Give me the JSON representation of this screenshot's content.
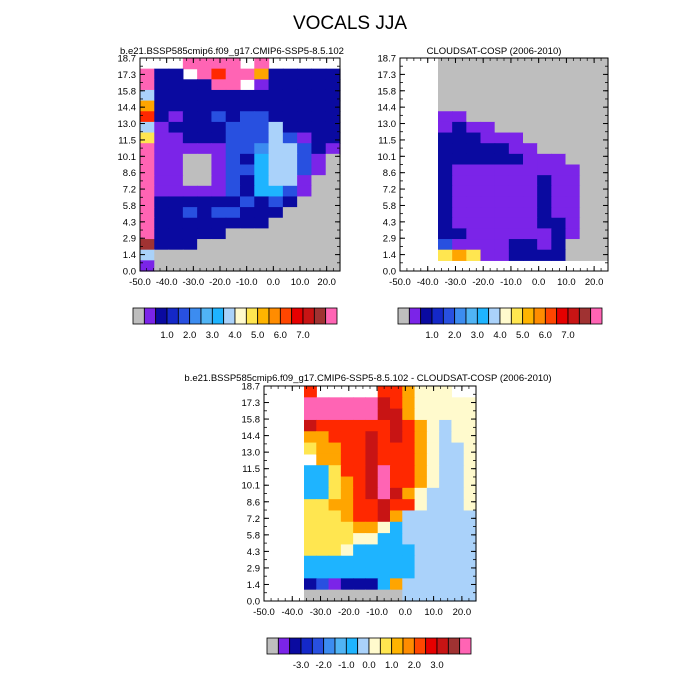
{
  "figure": {
    "title": "VOCALS JJA"
  },
  "colors": {
    "missing": "#bebebe",
    "abs": [
      "#bebebe",
      "#7b24e8",
      "#0a0aa0",
      "#1428c8",
      "#2850e0",
      "#3c8cf0",
      "#50b4f5",
      "#00c8ff",
      "#aad2fa",
      "#fffad2",
      "#ffe650",
      "#ffb400",
      "#ff8c00",
      "#ff4600",
      "#e60000",
      "#b40000",
      "#a03232",
      "#ff64b4"
    ],
    "diff": [
      "#bebebe",
      "#7b24e8",
      "#0a0aa0",
      "#1428c8",
      "#2850e0",
      "#3c8cf0",
      "#50b4f5",
      "#00c8ff",
      "#aad2fa",
      "#fffad2",
      "#ffe650",
      "#ffb400",
      "#ff8c00",
      "#ff4600",
      "#e60000",
      "#b40000",
      "#a03232",
      "#ff64b4"
    ]
  },
  "chart_data": [
    {
      "type": "heatmap",
      "title": "b.e21.BSSP585cmip6.f09_g17.CMIP6-SSP5-8.5.102",
      "x_ticks": [
        "-50.0",
        "-40.0",
        "-30.0",
        "-20.0",
        "-10.0",
        "0.0",
        "10.0",
        "20.0"
      ],
      "y_ticks": [
        "18.7",
        "17.3",
        "15.8",
        "14.4",
        "13.0",
        "11.5",
        "10.1",
        "8.6",
        "7.2",
        "5.8",
        "4.3",
        "2.9",
        "1.4",
        "0.0"
      ],
      "xlim": [
        -50,
        25
      ],
      "colorbar_labels": [
        "1.0",
        "2.0",
        "3.0",
        "4.0",
        "5.0",
        "6.0",
        "7.0"
      ],
      "cells": [
        [
          "white",
          "white",
          "white",
          "pink",
          "pink",
          "pink",
          "pink",
          "white",
          "pink",
          "white",
          "white",
          "white",
          "white",
          "white"
        ],
        [
          "pink",
          "navy",
          "navy",
          "white",
          "pink",
          "red",
          "pink",
          "pink",
          "orange",
          "navy",
          "navy",
          "navy",
          "navy",
          "navy"
        ],
        [
          "pink",
          "navy",
          "navy",
          "navy",
          "navy",
          "pink",
          "pink",
          "white",
          "purple",
          "navy",
          "navy",
          "navy",
          "navy",
          "navy"
        ],
        [
          "lightblue",
          "navy",
          "navy",
          "navy",
          "navy",
          "navy",
          "navy",
          "navy",
          "navy",
          "navy",
          "navy",
          "navy",
          "navy",
          "navy"
        ],
        [
          "orange",
          "navy",
          "navy",
          "navy",
          "navy",
          "navy",
          "navy",
          "navy",
          "navy",
          "navy",
          "navy",
          "navy",
          "navy",
          "navy"
        ],
        [
          "red",
          "navy",
          "purple",
          "navy",
          "navy",
          "blue",
          "navy",
          "blue",
          "blue",
          "navy",
          "navy",
          "navy",
          "navy",
          "navy"
        ],
        [
          "lightblue",
          "purple",
          "navy",
          "navy",
          "navy",
          "navy",
          "blue",
          "blue",
          "blue",
          "lightblue",
          "navy",
          "navy",
          "navy",
          "navy"
        ],
        [
          "yellow",
          "purple",
          "purple",
          "navy",
          "navy",
          "navy",
          "blue",
          "blue",
          "blue",
          "lightblue",
          "blue",
          "purple",
          "navy",
          "navy"
        ],
        [
          "pink",
          "purple",
          "purple",
          "purple",
          "purple",
          "purple",
          "blue",
          "blue",
          "midblue",
          "lightblue",
          "lightblue",
          "blue",
          "navy",
          "purple"
        ],
        [
          "pink",
          "purple",
          "purple",
          "gray",
          "gray",
          "purple",
          "blue",
          "navy",
          "cyan",
          "lightblue",
          "lightblue",
          "blue",
          "purple",
          "gray"
        ],
        [
          "pink",
          "purple",
          "purple",
          "gray",
          "gray",
          "purple",
          "blue",
          "blue",
          "cyan",
          "lightblue",
          "lightblue",
          "blue",
          "purple",
          "gray"
        ],
        [
          "pink",
          "purple",
          "purple",
          "gray",
          "gray",
          "purple",
          "blue",
          "navy",
          "cyan",
          "lightblue",
          "lightblue",
          "purple",
          "gray",
          "gray"
        ],
        [
          "pink",
          "purple",
          "purple",
          "purple",
          "purple",
          "purple",
          "blue",
          "navy",
          "cyan",
          "cyan",
          "blue",
          "purple",
          "gray",
          "gray"
        ],
        [
          "pink",
          "navy",
          "navy",
          "navy",
          "navy",
          "navy",
          "navy",
          "blue",
          "navy",
          "blue",
          "navy",
          "gray",
          "gray",
          "gray"
        ],
        [
          "pink",
          "navy",
          "navy",
          "blue",
          "navy",
          "blue",
          "blue",
          "navy",
          "navy",
          "navy",
          "gray",
          "gray",
          "gray",
          "gray"
        ],
        [
          "pink",
          "navy",
          "navy",
          "navy",
          "navy",
          "navy",
          "navy",
          "navy",
          "navy",
          "gray",
          "gray",
          "gray",
          "gray",
          "gray"
        ],
        [
          "pink",
          "navy",
          "navy",
          "navy",
          "navy",
          "navy",
          "gray",
          "gray",
          "gray",
          "gray",
          "gray",
          "gray",
          "gray",
          "gray"
        ],
        [
          "brown",
          "navy",
          "navy",
          "navy",
          "gray",
          "gray",
          "gray",
          "gray",
          "gray",
          "gray",
          "gray",
          "gray",
          "gray",
          "gray"
        ],
        [
          "lightblue",
          "gray",
          "gray",
          "gray",
          "gray",
          "gray",
          "gray",
          "gray",
          "gray",
          "gray",
          "gray",
          "gray",
          "gray",
          "gray"
        ],
        [
          "purple",
          "gray",
          "gray",
          "gray",
          "gray",
          "gray",
          "gray",
          "gray",
          "gray",
          "gray",
          "gray",
          "gray",
          "gray",
          "gray"
        ]
      ]
    },
    {
      "type": "heatmap",
      "title": "CLOUDSAT-COSP (2006-2010)",
      "x_ticks": [
        "-50.0",
        "-40.0",
        "-30.0",
        "-20.0",
        "-10.0",
        "0.0",
        "10.0",
        "20.0"
      ],
      "y_ticks": [
        "18.7",
        "17.3",
        "15.8",
        "14.4",
        "13.0",
        "11.5",
        "10.1",
        "8.6",
        "7.2",
        "5.8",
        "4.3",
        "2.9",
        "1.4",
        "0.0"
      ],
      "xlim": [
        -50,
        25
      ],
      "colorbar_labels": [
        "1.0",
        "2.0",
        "3.0",
        "4.0",
        "5.0",
        "6.0",
        "7.0"
      ],
      "cells": [
        [
          "gray",
          "gray",
          "gray",
          "gray",
          "gray",
          "gray",
          "gray",
          "gray",
          "gray",
          "gray",
          "gray",
          "gray"
        ],
        [
          "gray",
          "gray",
          "gray",
          "gray",
          "gray",
          "gray",
          "gray",
          "gray",
          "gray",
          "gray",
          "gray",
          "gray"
        ],
        [
          "gray",
          "gray",
          "gray",
          "gray",
          "gray",
          "gray",
          "gray",
          "gray",
          "gray",
          "gray",
          "gray",
          "gray"
        ],
        [
          "gray",
          "gray",
          "gray",
          "gray",
          "gray",
          "gray",
          "gray",
          "gray",
          "gray",
          "gray",
          "gray",
          "gray"
        ],
        [
          "gray",
          "gray",
          "gray",
          "gray",
          "gray",
          "gray",
          "gray",
          "gray",
          "gray",
          "gray",
          "gray",
          "gray"
        ],
        [
          "purple",
          "purple",
          "gray",
          "gray",
          "gray",
          "gray",
          "gray",
          "gray",
          "gray",
          "gray",
          "gray",
          "gray"
        ],
        [
          "purple",
          "navy",
          "purple",
          "purple",
          "gray",
          "gray",
          "gray",
          "gray",
          "gray",
          "gray",
          "gray",
          "gray"
        ],
        [
          "navy",
          "navy",
          "navy",
          "purple",
          "purple",
          "purple",
          "gray",
          "gray",
          "gray",
          "gray",
          "gray",
          "gray"
        ],
        [
          "navy",
          "navy",
          "navy",
          "navy",
          "navy",
          "purple",
          "purple",
          "gray",
          "gray",
          "gray",
          "gray",
          "gray"
        ],
        [
          "navy",
          "navy",
          "navy",
          "navy",
          "navy",
          "navy",
          "purple",
          "purple",
          "purple",
          "gray",
          "gray",
          "gray"
        ],
        [
          "navy",
          "purple",
          "purple",
          "purple",
          "purple",
          "purple",
          "purple",
          "purple",
          "purple",
          "purple",
          "gray",
          "gray"
        ],
        [
          "navy",
          "purple",
          "purple",
          "purple",
          "purple",
          "purple",
          "purple",
          "navy",
          "purple",
          "purple",
          "gray",
          "gray"
        ],
        [
          "navy",
          "purple",
          "purple",
          "purple",
          "purple",
          "purple",
          "purple",
          "navy",
          "purple",
          "purple",
          "gray",
          "gray"
        ],
        [
          "navy",
          "purple",
          "purple",
          "purple",
          "purple",
          "purple",
          "purple",
          "navy",
          "purple",
          "purple",
          "gray",
          "gray"
        ],
        [
          "navy",
          "purple",
          "purple",
          "purple",
          "purple",
          "purple",
          "purple",
          "navy",
          "purple",
          "purple",
          "gray",
          "gray"
        ],
        [
          "navy",
          "purple",
          "purple",
          "purple",
          "purple",
          "purple",
          "purple",
          "navy",
          "navy",
          "purple",
          "gray",
          "gray"
        ],
        [
          "navy",
          "navy",
          "purple",
          "purple",
          "purple",
          "purple",
          "purple",
          "purple",
          "navy",
          "purple",
          "gray",
          "gray"
        ],
        [
          "blue",
          "purple",
          "purple",
          "purple",
          "purple",
          "navy",
          "navy",
          "purple",
          "navy",
          "gray",
          "gray",
          "gray"
        ],
        [
          "yellow",
          "orange",
          "yellow",
          "purple",
          "purple",
          "navy",
          "navy",
          "navy",
          "navy",
          "gray",
          "gray",
          "gray"
        ],
        [
          "white",
          "white",
          "white",
          "white",
          "white",
          "white",
          "white",
          "white",
          "white",
          "white",
          "white",
          "white"
        ]
      ]
    },
    {
      "type": "heatmap",
      "title": "b.e21.BSSP585cmip6.f09_g17.CMIP6-SSP5-8.5.102 - CLOUDSAT-COSP (2006-2010)",
      "x_ticks": [
        "-50.0",
        "-40.0",
        "-30.0",
        "-20.0",
        "-10.0",
        "0.0",
        "10.0",
        "20.0"
      ],
      "y_ticks": [
        "18.7",
        "17.3",
        "15.8",
        "14.4",
        "13.0",
        "11.5",
        "10.1",
        "8.6",
        "7.2",
        "5.8",
        "4.3",
        "2.9",
        "1.4",
        "0.0"
      ],
      "xlim": [
        -50,
        25
      ],
      "colorbar_labels": [
        "-3.0",
        "-2.0",
        "-1.0",
        "0.0",
        "1.0",
        "2.0",
        "3.0"
      ],
      "cells": [
        [
          "red",
          "white",
          "white",
          "white",
          "white",
          "white",
          "red",
          "red",
          "orange",
          "lightyellow",
          "lightyellow",
          "lightyellow",
          "white",
          "white"
        ],
        [
          "pink",
          "pink",
          "pink",
          "pink",
          "pink",
          "pink",
          "darkred",
          "red",
          "orange",
          "lightyellow",
          "lightyellow",
          "lightyellow",
          "lightyellow",
          "lightyellow"
        ],
        [
          "pink",
          "pink",
          "pink",
          "pink",
          "pink",
          "pink",
          "darkred",
          "darkred",
          "orange",
          "lightyellow",
          "lightyellow",
          "lightyellow",
          "lightyellow",
          "lightyellow"
        ],
        [
          "darkred",
          "red",
          "red",
          "red",
          "red",
          "red",
          "red",
          "darkred",
          "red",
          "orange",
          "lightyellow",
          "lightblue",
          "lightyellow",
          "lightyellow"
        ],
        [
          "orange",
          "orange",
          "red",
          "red",
          "red",
          "darkred",
          "red",
          "darkred",
          "red",
          "orange",
          "lightyellow",
          "lightblue",
          "lightyellow",
          "lightyellow"
        ],
        [
          "yellow",
          "orange",
          "orange",
          "red",
          "red",
          "darkred",
          "red",
          "red",
          "red",
          "orange",
          "lightyellow",
          "lightblue",
          "lightblue",
          "lightyellow"
        ],
        [
          "white",
          "orange",
          "orange",
          "red",
          "red",
          "darkred",
          "red",
          "red",
          "red",
          "orange",
          "lightyellow",
          "lightblue",
          "lightblue",
          "lightyellow"
        ],
        [
          "cyan",
          "cyan",
          "yellow",
          "red",
          "red",
          "darkred",
          "pink",
          "red",
          "red",
          "orange",
          "lightyellow",
          "lightblue",
          "lightblue",
          "lightyellow"
        ],
        [
          "cyan",
          "cyan",
          "yellow",
          "orange",
          "red",
          "darkred",
          "pink",
          "red",
          "red",
          "orange",
          "lightyellow",
          "lightblue",
          "lightblue",
          "lightyellow"
        ],
        [
          "cyan",
          "cyan",
          "yellow",
          "orange",
          "red",
          "darkred",
          "pink",
          "darkred",
          "orange",
          "lightyellow",
          "lightblue",
          "lightblue",
          "lightblue",
          "lightyellow"
        ],
        [
          "yellow",
          "yellow",
          "orange",
          "orange",
          "red",
          "red",
          "darkred",
          "red",
          "red",
          "lightyellow",
          "lightblue",
          "lightblue",
          "lightblue",
          "lightyellow"
        ],
        [
          "yellow",
          "yellow",
          "yellow",
          "orange",
          "red",
          "red",
          "darkred",
          "orange",
          "lightblue",
          "lightblue",
          "lightblue",
          "lightblue",
          "lightblue",
          "lightblue"
        ],
        [
          "yellow",
          "yellow",
          "yellow",
          "yellow",
          "orange",
          "orange",
          "lightyellow",
          "cyan",
          "lightblue",
          "lightblue",
          "lightblue",
          "lightblue",
          "lightblue",
          "lightblue"
        ],
        [
          "yellow",
          "yellow",
          "yellow",
          "yellow",
          "lightyellow",
          "lightyellow",
          "cyan",
          "cyan",
          "lightblue",
          "lightblue",
          "lightblue",
          "lightblue",
          "lightblue",
          "lightblue"
        ],
        [
          "yellow",
          "yellow",
          "yellow",
          "lightyellow",
          "cyan",
          "cyan",
          "cyan",
          "cyan",
          "cyan",
          "lightblue",
          "lightblue",
          "lightblue",
          "lightblue",
          "lightblue"
        ],
        [
          "cyan",
          "cyan",
          "cyan",
          "cyan",
          "cyan",
          "cyan",
          "cyan",
          "cyan",
          "cyan",
          "lightblue",
          "lightblue",
          "lightblue",
          "lightblue",
          "lightblue"
        ],
        [
          "cyan",
          "cyan",
          "cyan",
          "cyan",
          "cyan",
          "cyan",
          "cyan",
          "cyan",
          "cyan",
          "lightblue",
          "lightblue",
          "lightblue",
          "lightblue",
          "lightblue"
        ],
        [
          "navy",
          "blue",
          "purple",
          "navy",
          "navy",
          "navy",
          "cyan",
          "orange",
          "lightblue",
          "lightblue",
          "lightblue",
          "lightblue",
          "lightblue",
          "lightblue"
        ],
        [
          "gray",
          "gray",
          "gray",
          "gray",
          "gray",
          "gray",
          "gray",
          "gray",
          "lightblue",
          "lightblue",
          "lightblue",
          "lightblue",
          "lightblue",
          "lightblue"
        ]
      ]
    }
  ]
}
